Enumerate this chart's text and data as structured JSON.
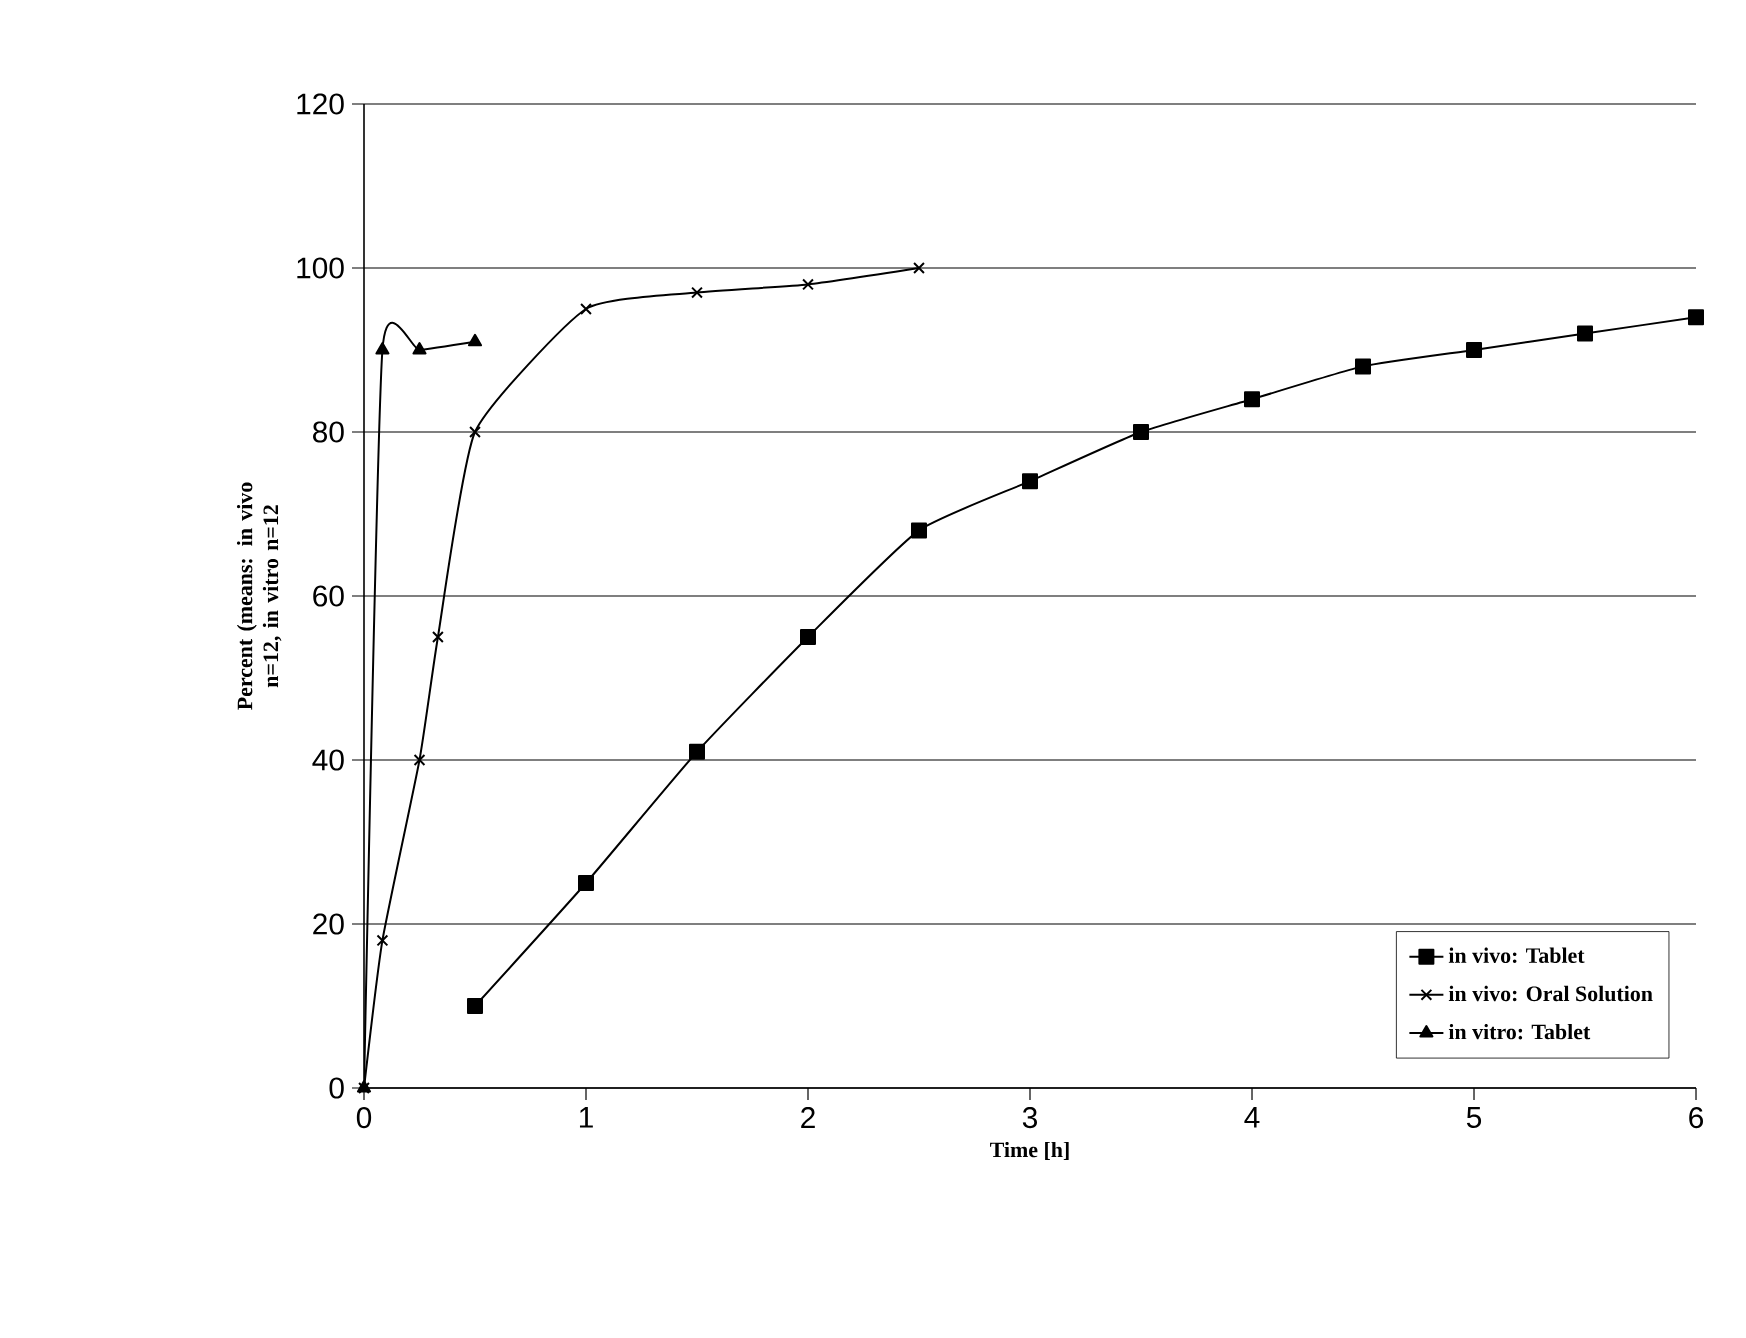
{
  "chart_data": {
    "type": "line",
    "xlabel": "Time [h]",
    "ylabel": "Percent (means: in vivo n=12, in vitro n=12",
    "xlim": [
      0,
      6
    ],
    "ylim": [
      0,
      120
    ],
    "xticks": [
      0,
      1,
      2,
      3,
      4,
      5,
      6
    ],
    "yticks": [
      0,
      20,
      40,
      60,
      80,
      100,
      120
    ],
    "grid": "y",
    "legend": "bottom right",
    "series": [
      {
        "name": "in vivo: Tablet",
        "color": "#000000",
        "marker": "square",
        "x": [
          0.5,
          1,
          1.5,
          2,
          2.5,
          3,
          3.5,
          4,
          4.5,
          5,
          5.5,
          6
        ],
        "values": [
          10,
          25,
          41,
          55,
          68,
          74,
          80,
          84,
          88,
          90,
          92,
          94
        ]
      },
      {
        "name": "in vivo: Oral Solution",
        "color": "#000000",
        "marker": "cross",
        "x": [
          0,
          0.083,
          0.25,
          0.333,
          0.5,
          1,
          1.5,
          2,
          2.5
        ],
        "values": [
          0,
          18,
          40,
          55,
          80,
          95,
          97,
          98,
          100
        ]
      },
      {
        "name": "in vitro: Tablet",
        "color": "#000000",
        "marker": "triangle",
        "x": [
          0,
          0.083,
          0.25,
          0.5
        ],
        "values": [
          0,
          90,
          90,
          91
        ]
      }
    ]
  }
}
